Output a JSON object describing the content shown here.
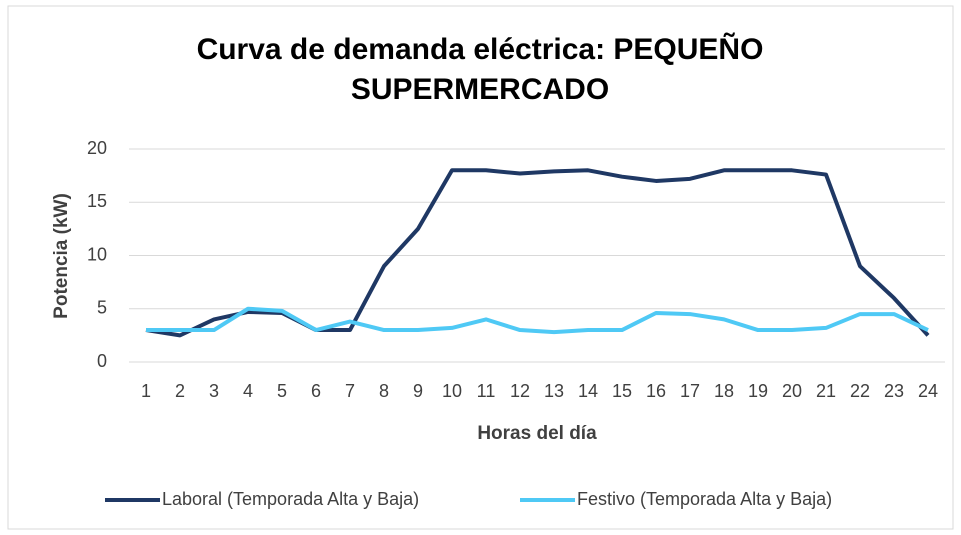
{
  "chart_data": {
    "type": "line",
    "title": "Curva de demanda eléctrica: PEQUEÑO SUPERMERCADO",
    "x_label": "Horas del día",
    "y_label": "Potencia (kW)",
    "categories": [
      "1",
      "2",
      "3",
      "4",
      "5",
      "6",
      "7",
      "8",
      "9",
      "10",
      "11",
      "12",
      "13",
      "14",
      "15",
      "16",
      "17",
      "18",
      "19",
      "20",
      "21",
      "22",
      "23",
      "24"
    ],
    "series": [
      {
        "name": "Laboral (Temporada Alta y Baja)",
        "color": "#1f3864",
        "values": [
          3,
          2.5,
          4,
          4.7,
          4.6,
          3,
          3,
          9,
          12.5,
          18,
          18,
          17.7,
          17.9,
          18,
          17.4,
          17,
          17.2,
          18,
          18,
          18,
          17.6,
          9,
          6,
          2.5
        ]
      },
      {
        "name": "Festivo (Temporada Alta y Baja)",
        "color": "#4fc9f5",
        "values": [
          3,
          3,
          3,
          5,
          4.8,
          3,
          3.8,
          3,
          3,
          3.2,
          4,
          3,
          2.8,
          3,
          3,
          4.6,
          4.5,
          4,
          3,
          3,
          3.2,
          4.5,
          4.5,
          3
        ]
      }
    ],
    "ylim": [
      0,
      20
    ],
    "yticks": [
      0,
      5,
      10,
      15,
      20
    ],
    "grid": true,
    "legend": "bottom"
  }
}
